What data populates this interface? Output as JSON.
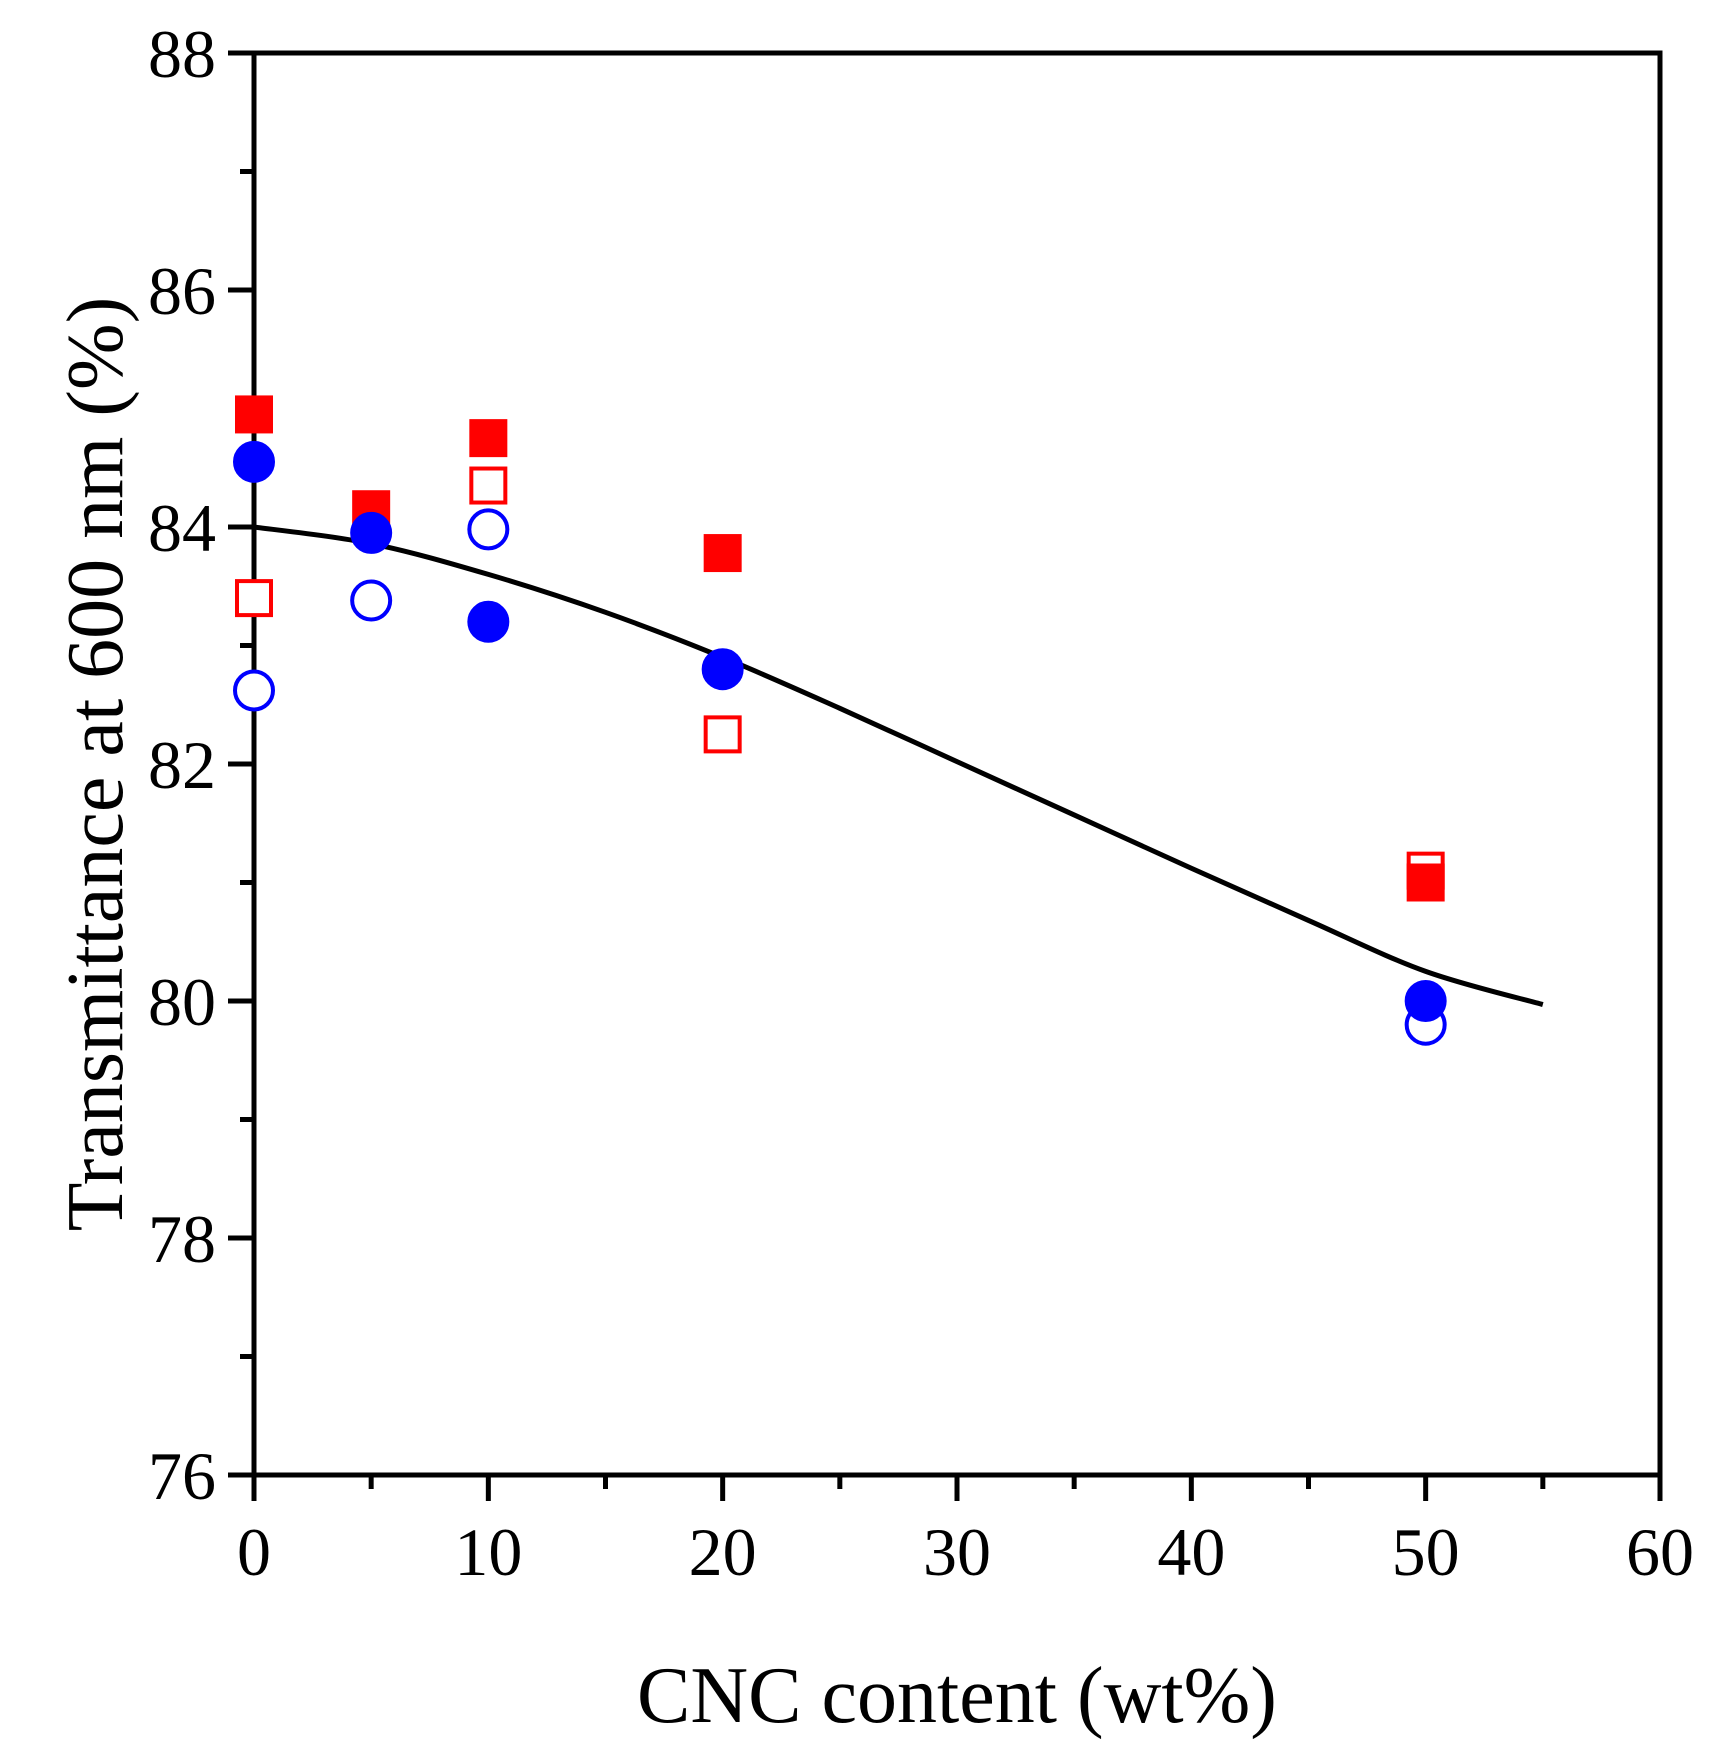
{
  "chart_data": {
    "type": "scatter",
    "title": "",
    "xlabel": "CNC content (wt%)",
    "ylabel": "Transmittance at 600 nm (%)",
    "xlim": [
      0,
      60
    ],
    "ylim": [
      76,
      88
    ],
    "xticks": [
      "0",
      "10",
      "20",
      "30",
      "40",
      "50",
      "60"
    ],
    "yticks": [
      "76",
      "78",
      "80",
      "82",
      "84",
      "86",
      "88"
    ],
    "grid": false,
    "legend": "none",
    "series": [
      {
        "name": "filled red squares",
        "marker": "square",
        "filled": true,
        "color": "#ff0000",
        "x": [
          0,
          5,
          10,
          20,
          50
        ],
        "y": [
          84.95,
          84.15,
          84.75,
          83.78,
          81.0
        ]
      },
      {
        "name": "hollow red squares",
        "marker": "square",
        "filled": false,
        "color": "#ff0000",
        "x": [
          0,
          10,
          20,
          50
        ],
        "y": [
          83.4,
          84.35,
          82.25,
          81.1
        ]
      },
      {
        "name": "filled blue circles",
        "marker": "circle",
        "filled": true,
        "color": "#0000ff",
        "x": [
          0,
          5,
          10,
          20,
          50
        ],
        "y": [
          84.55,
          83.95,
          83.2,
          82.8,
          80.0
        ]
      },
      {
        "name": "hollow blue circles",
        "marker": "circle",
        "filled": false,
        "color": "#0000ff",
        "x": [
          0,
          5,
          10,
          50
        ],
        "y": [
          82.62,
          83.38,
          83.98,
          79.8
        ]
      }
    ],
    "fit_line": {
      "name": "fit curve",
      "type": "line",
      "color": "#000000",
      "x": [
        0,
        5,
        10,
        15,
        20,
        25,
        30,
        35,
        40,
        45,
        50,
        55
      ],
      "y": [
        84.0,
        83.86,
        83.6,
        83.28,
        82.9,
        82.47,
        82.02,
        81.57,
        81.12,
        80.68,
        80.25,
        79.97
      ]
    }
  }
}
